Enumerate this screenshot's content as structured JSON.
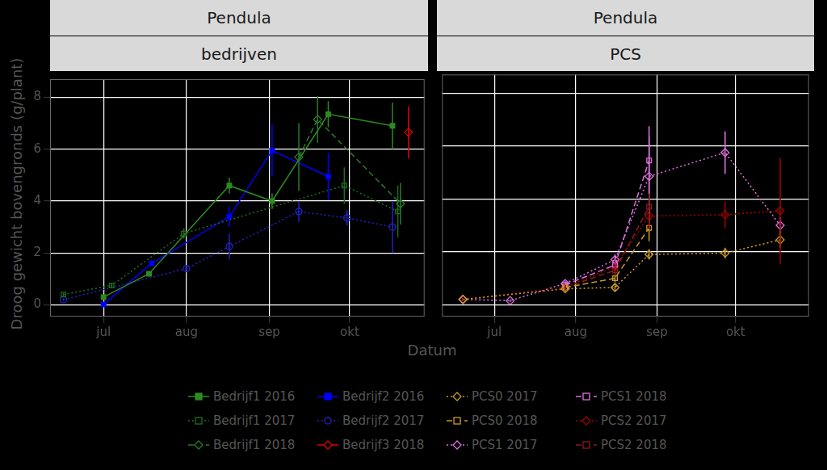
{
  "chart_data": [
    {
      "type": "line",
      "title": "Pendula",
      "subtitle": "bedrijven",
      "x_label": "Datum",
      "y_label": "Droog gewicht bovengronds (g/plant)",
      "xlim": [
        162,
        302
      ],
      "xticks": [
        {
          "value": 182,
          "label": "jul"
        },
        {
          "value": 213,
          "label": "aug"
        },
        {
          "value": 244,
          "label": "sep"
        },
        {
          "value": 274,
          "label": "okt"
        }
      ],
      "ylim": [
        -0.45,
        8.7
      ],
      "yticks": [
        0,
        2,
        4,
        6,
        8
      ],
      "grid": true,
      "legend": "bottom",
      "series": [
        {
          "name": "Bedrijf1 2016",
          "color": "#2e8b22",
          "marker": "square",
          "line_style": "solid",
          "x": [
            182,
            199,
            229,
            245,
            266,
            290
          ],
          "values": [
            0.3,
            1.2,
            4.6,
            4.0,
            7.35,
            6.9
          ],
          "errors": [
            0.1,
            0.1,
            0.3,
            0.3,
            0.5,
            0.9
          ]
        },
        {
          "name": "Bedrijf1 2017",
          "color": "#1f6e1f",
          "marker": "square-open",
          "line_style": "dotted",
          "x": [
            167,
            185,
            212,
            272,
            292
          ],
          "values": [
            0.4,
            0.75,
            2.75,
            4.6,
            3.6
          ],
          "errors": [
            0.05,
            0.1,
            0.2,
            0.7,
            1.0
          ]
        },
        {
          "name": "Bedrijf1 2018",
          "color": "#2a7a2a",
          "marker": "diamond-open",
          "line_style": "dashed",
          "x": [
            255,
            262,
            293
          ],
          "values": [
            5.7,
            7.15,
            3.9
          ],
          "errors": [
            1.3,
            0.9,
            0.8
          ]
        },
        {
          "name": "Bedrijf2 2016",
          "color": "#0000ff",
          "marker": "square",
          "line_style": "solid",
          "x": [
            182,
            200,
            229,
            245,
            266
          ],
          "values": [
            0.02,
            1.6,
            3.4,
            5.95,
            4.95
          ],
          "errors": [
            0.05,
            0.1,
            0.4,
            1.0,
            0.9
          ]
        },
        {
          "name": "Bedrijf2 2017",
          "color": "#2222cc",
          "marker": "circle-open",
          "line_style": "dotted",
          "x": [
            167,
            213,
            229,
            255,
            273,
            290
          ],
          "values": [
            0.2,
            1.4,
            2.25,
            3.6,
            3.35,
            3.0
          ],
          "errors": [
            0.05,
            0.1,
            0.5,
            0.4,
            0.3,
            1.0
          ]
        },
        {
          "name": "Bedrijf3 2018",
          "color": "#e00000",
          "marker": "diamond-open",
          "line_style": "solid",
          "x": [
            296
          ],
          "values": [
            6.65
          ],
          "errors": [
            1.0
          ]
        }
      ]
    },
    {
      "type": "line",
      "title": "Pendula",
      "subtitle": "PCS",
      "xlim": [
        162,
        302
      ],
      "xticks": [
        {
          "value": 182,
          "label": "jul"
        },
        {
          "value": 213,
          "label": "aug"
        },
        {
          "value": 244,
          "label": "sep"
        },
        {
          "value": 274,
          "label": "okt"
        }
      ],
      "ylim": [
        -0.45,
        8.7
      ],
      "yticks": [
        0,
        2,
        4,
        6,
        8
      ],
      "grid": true,
      "legend": "bottom",
      "tick_labels": "x",
      "series": [
        {
          "name": "PCS0 2017",
          "color": "#c89a28",
          "marker": "diamond-open",
          "line_style": "dotted",
          "x": [
            170,
            209,
            228,
            241,
            270,
            291
          ],
          "values": [
            0.2,
            0.6,
            0.65,
            1.9,
            1.95,
            2.45
          ],
          "errors": [
            0.05,
            0.1,
            0.15,
            0.2,
            0.2,
            0.3
          ]
        },
        {
          "name": "PCS0 2018",
          "color": "#c89a28",
          "marker": "square-open",
          "line_style": "dashed",
          "x": [
            209,
            228,
            241
          ],
          "values": [
            0.65,
            1.0,
            2.9
          ],
          "errors": [
            0.1,
            0.15,
            0.5
          ]
        },
        {
          "name": "PCS1 2017",
          "color": "#e070e0",
          "marker": "diamond-open",
          "line_style": "dotted",
          "x": [
            170,
            188,
            209,
            228,
            241,
            270,
            291
          ],
          "values": [
            0.2,
            0.15,
            0.8,
            1.7,
            4.85,
            5.75,
            3.0
          ],
          "errors": [
            0.05,
            0.05,
            0.1,
            0.2,
            1.5,
            0.8,
            0.3
          ]
        },
        {
          "name": "PCS1 2018",
          "color": "#e070e0",
          "marker": "square-open",
          "line_style": "dashed",
          "x": [
            209,
            228,
            241
          ],
          "values": [
            0.75,
            1.5,
            5.45
          ],
          "errors": [
            0.1,
            0.2,
            1.3
          ]
        },
        {
          "name": "PCS2 2017",
          "color": "#a00000",
          "marker": "diamond-open",
          "line_style": "dotted",
          "x": [
            170,
            209,
            228,
            241,
            270,
            291
          ],
          "values": [
            0.2,
            0.65,
            1.45,
            3.35,
            3.4,
            3.55
          ],
          "errors": [
            0.05,
            0.1,
            0.2,
            0.5,
            0.5,
            2.0
          ]
        },
        {
          "name": "PCS2 2018",
          "color": "#8b1a1a",
          "marker": "square-open",
          "line_style": "dashed",
          "x": [
            209,
            228,
            241
          ],
          "values": [
            0.65,
            1.3,
            3.7
          ],
          "errors": [
            0.1,
            0.2,
            0.5
          ]
        }
      ]
    }
  ]
}
